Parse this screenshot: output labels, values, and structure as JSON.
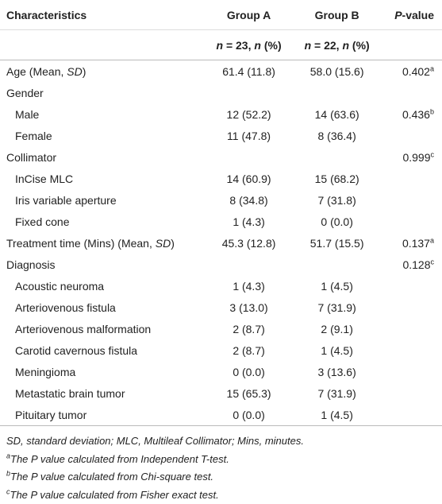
{
  "table": {
    "header": {
      "label": "Characteristics",
      "group_a": "Group A",
      "group_b": "Group B",
      "p_value": [
        {
          "text": "P",
          "italic": true
        },
        {
          "text": "-value"
        }
      ]
    },
    "subheader": {
      "group_a": [
        {
          "text": "n",
          "italic": true
        },
        {
          "text": " = 23, "
        },
        {
          "text": "n",
          "italic": true
        },
        {
          "text": " (%)"
        }
      ],
      "group_b": [
        {
          "text": "n",
          "italic": true
        },
        {
          "text": " = 22, "
        },
        {
          "text": "n",
          "italic": true
        },
        {
          "text": " (%)"
        }
      ]
    },
    "rows": [
      {
        "label": [
          {
            "text": "Age (Mean, "
          },
          {
            "text": "SD",
            "italic": true
          },
          {
            "text": ")"
          }
        ],
        "group_a": "61.4 (11.8)",
        "group_b": "58.0 (15.6)",
        "p_value": [
          {
            "text": "0.402"
          },
          {
            "text": "a",
            "sup": true
          }
        ]
      },
      {
        "label": "Gender",
        "children": [
          {
            "label": "Male",
            "group_a": "12 (52.2)",
            "group_b": "14 (63.6)",
            "p_value": [
              {
                "text": "0.436"
              },
              {
                "text": "b",
                "sup": true
              }
            ]
          },
          {
            "label": "Female",
            "group_a": "11 (47.8)",
            "group_b": "8 (36.4)"
          }
        ]
      },
      {
        "label": "Collimator",
        "p_value": [
          {
            "text": "0.999"
          },
          {
            "text": "c",
            "sup": true
          }
        ],
        "children": [
          {
            "label": "InCise MLC",
            "group_a": "14 (60.9)",
            "group_b": "15 (68.2)"
          },
          {
            "label": "Iris variable aperture",
            "group_a": "8 (34.8)",
            "group_b": "7 (31.8)"
          },
          {
            "label": "Fixed cone",
            "group_a": "1 (4.3)",
            "group_b": "0 (0.0)"
          }
        ]
      },
      {
        "label": [
          {
            "text": "Treatment time (Mins) (Mean, "
          },
          {
            "text": "SD",
            "italic": true
          },
          {
            "text": ")"
          }
        ],
        "group_a": "45.3 (12.8)",
        "group_b": "51.7 (15.5)",
        "p_value": [
          {
            "text": "0.137"
          },
          {
            "text": "a",
            "sup": true
          }
        ]
      },
      {
        "label": "Diagnosis",
        "p_value": [
          {
            "text": "0.128"
          },
          {
            "text": "c",
            "sup": true
          }
        ],
        "children": [
          {
            "label": "Acoustic neuroma",
            "group_a": "1 (4.3)",
            "group_b": "1 (4.5)"
          },
          {
            "label": "Arteriovenous fistula",
            "group_a": "3 (13.0)",
            "group_b": "7 (31.9)"
          },
          {
            "label": "Arteriovenous malformation",
            "group_a": "2 (8.7)",
            "group_b": "2 (9.1)"
          },
          {
            "label": "Carotid cavernous fistula",
            "group_a": "2 (8.7)",
            "group_b": "1 (4.5)"
          },
          {
            "label": "Meningioma",
            "group_a": "0 (0.0)",
            "group_b": "3 (13.6)"
          },
          {
            "label": "Metastatic brain tumor",
            "group_a": "15 (65.3)",
            "group_b": "7 (31.9)"
          },
          {
            "label": "Pituitary tumor",
            "group_a": "0 (0.0)",
            "group_b": "1 (4.5)"
          }
        ]
      }
    ],
    "footnotes": [
      [
        {
          "text": "SD, standard deviation; MLC, Multileaf Collimator; Mins, minutes.",
          "italic": true
        }
      ],
      [
        {
          "text": "a",
          "sup": true,
          "italic": true
        },
        {
          "text": "The P value calculated from Independent T-test.",
          "italic": true
        }
      ],
      [
        {
          "text": "b",
          "sup": true,
          "italic": true
        },
        {
          "text": "The P value calculated from Chi-square test.",
          "italic": true
        }
      ],
      [
        {
          "text": "c",
          "sup": true,
          "italic": true
        },
        {
          "text": "The P value calculated from Fisher exact test.",
          "italic": true
        }
      ]
    ]
  }
}
